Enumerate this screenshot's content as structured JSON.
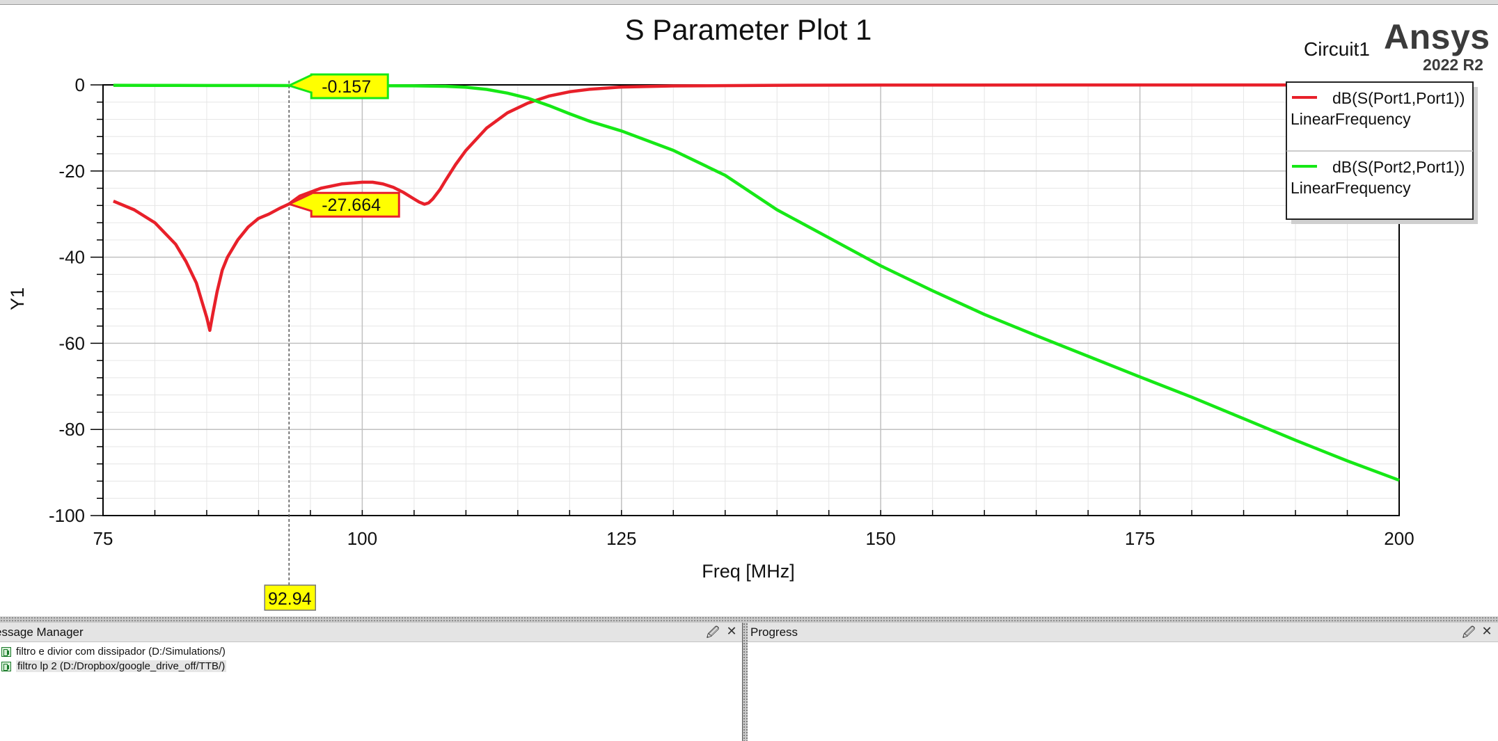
{
  "plot": {
    "title": "S Parameter Plot 1",
    "design_name": "Circuit1",
    "brand": "Ansys",
    "version": "2022 R2"
  },
  "chart_data": {
    "type": "line",
    "title": "S Parameter Plot 1",
    "xlabel": "Freq [MHz]",
    "ylabel": "Y1",
    "xlim": [
      75,
      200
    ],
    "ylim": [
      -100,
      0
    ],
    "xticks": [
      75,
      100,
      125,
      150,
      175,
      200
    ],
    "yticks": [
      0,
      -20,
      -40,
      -60,
      -80,
      -100
    ],
    "grid": true,
    "legend_position": "top-right",
    "series": [
      {
        "name": "dB(S(Port1,Port1))",
        "sublabel": "LinearFrequency",
        "color": "#e8202a",
        "x": [
          76,
          78,
          80,
          82,
          83,
          84,
          84.5,
          85,
          85.3,
          85.6,
          86,
          86.5,
          87,
          88,
          89,
          90,
          91,
          92,
          92.94,
          94,
          96,
          98,
          100,
          101,
          102,
          103,
          104,
          105,
          105.5,
          106,
          106.4,
          106.8,
          107.5,
          108,
          109,
          110,
          112,
          114,
          116,
          118,
          120,
          122,
          125,
          130,
          140,
          150,
          175,
          200
        ],
        "y": [
          -27,
          -29,
          -32,
          -37,
          -41,
          -46,
          -50,
          -54,
          -57,
          -53,
          -48,
          -43,
          -40,
          -36,
          -33,
          -31,
          -30,
          -28.7,
          -27.664,
          -25.8,
          -24,
          -23,
          -22.6,
          -22.6,
          -23,
          -23.8,
          -25,
          -26.5,
          -27.2,
          -27.7,
          -27.4,
          -26.5,
          -24.3,
          -22.3,
          -18.5,
          -15.2,
          -10,
          -6.5,
          -4.2,
          -2.6,
          -1.6,
          -1,
          -0.5,
          -0.25,
          -0.1,
          -0.05,
          -0.02,
          -0.01
        ]
      },
      {
        "name": "dB(S(Port2,Port1))",
        "sublabel": "LinearFrequency",
        "color": "#16e816",
        "x": [
          76,
          80,
          85,
          90,
          92.94,
          95,
          100,
          105,
          108,
          110,
          112,
          114,
          116,
          118,
          120,
          122,
          125,
          130,
          135,
          140,
          145,
          150,
          155,
          160,
          165,
          170,
          175,
          180,
          185,
          190,
          195,
          200
        ],
        "y": [
          -0.1,
          -0.12,
          -0.14,
          -0.15,
          -0.157,
          -0.16,
          -0.17,
          -0.22,
          -0.32,
          -0.55,
          -1.05,
          -1.9,
          -3.1,
          -4.8,
          -6.7,
          -8.5,
          -10.7,
          -15.2,
          -21,
          -29,
          -35.5,
          -42,
          -47.8,
          -53.3,
          -58.2,
          -63,
          -67.8,
          -72.5,
          -77.5,
          -82.5,
          -87.3,
          -91.8
        ]
      }
    ],
    "marker": {
      "x_label": "92.94",
      "labels": [
        {
          "text": "-0.157",
          "series": 1,
          "y": -0.157
        },
        {
          "text": "-27.664",
          "series": 0,
          "y": -27.664
        }
      ],
      "x": 92.94
    }
  },
  "message_manager": {
    "title": "essage Manager",
    "items": [
      {
        "label": "filtro e divior com dissipador (D:/Simulations/)"
      },
      {
        "label": "filtro lp 2 (D:/Dropbox/google_drive_off/TTB/)"
      }
    ]
  },
  "progress": {
    "title": "Progress"
  },
  "icons": {
    "pin": "pin-icon",
    "close": "close-icon",
    "project": "project-icon"
  }
}
